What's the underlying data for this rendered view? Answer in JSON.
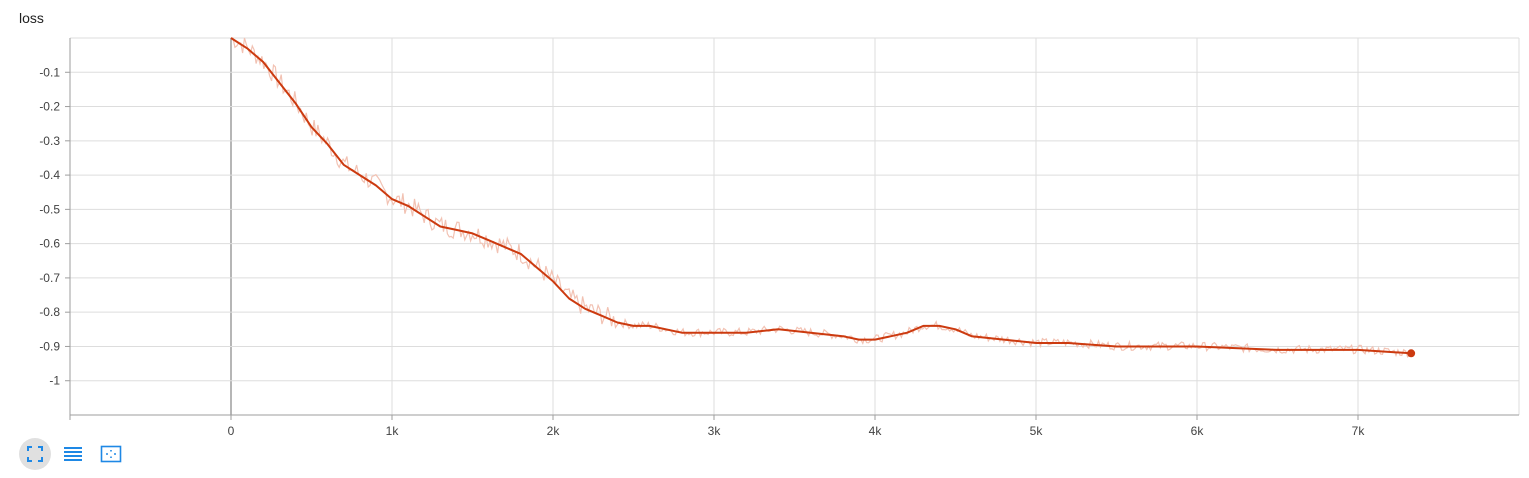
{
  "chart_data": {
    "type": "line",
    "title": "loss",
    "xlabel": "",
    "ylabel": "",
    "xlim": [
      -1000,
      8000
    ],
    "ylim": [
      -1.1,
      0
    ],
    "grid": true,
    "x_ticks": [
      0,
      1000,
      2000,
      3000,
      4000,
      5000,
      6000,
      7000
    ],
    "x_tick_labels": [
      "0",
      "1k",
      "2k",
      "3k",
      "4k",
      "5k",
      "6k",
      "7k"
    ],
    "y_ticks": [
      -0.1,
      -0.2,
      -0.3,
      -0.4,
      -0.5,
      -0.6,
      -0.7,
      -0.8,
      -0.9,
      -1
    ],
    "y_tick_labels": [
      "-0.1",
      "-0.2",
      "-0.3",
      "-0.4",
      "-0.5",
      "-0.6",
      "-0.7",
      "-0.8",
      "-0.9",
      "-1"
    ],
    "colors": {
      "smoothed": "#cc3a0f",
      "raw": "#f2c2b3",
      "grid": "#dddddd",
      "axis": "#9e9e9e"
    },
    "series": [
      {
        "smoothed": true,
        "x": [
          0,
          100,
          200,
          300,
          400,
          500,
          600,
          700,
          800,
          900,
          1000,
          1100,
          1200,
          1300,
          1400,
          1500,
          1600,
          1700,
          1800,
          1900,
          2000,
          2100,
          2200,
          2300,
          2400,
          2500,
          2600,
          2800,
          3000,
          3200,
          3400,
          3600,
          3800,
          3900,
          4000,
          4100,
          4200,
          4300,
          4400,
          4500,
          4600,
          4800,
          5000,
          5200,
          5500,
          6000,
          6500,
          7000,
          7330
        ],
        "y": [
          0,
          -0.03,
          -0.07,
          -0.13,
          -0.19,
          -0.26,
          -0.31,
          -0.37,
          -0.4,
          -0.43,
          -0.47,
          -0.49,
          -0.52,
          -0.55,
          -0.56,
          -0.57,
          -0.59,
          -0.61,
          -0.63,
          -0.67,
          -0.71,
          -0.76,
          -0.79,
          -0.81,
          -0.83,
          -0.84,
          -0.84,
          -0.86,
          -0.86,
          -0.86,
          -0.85,
          -0.86,
          -0.87,
          -0.88,
          -0.88,
          -0.87,
          -0.86,
          -0.84,
          -0.84,
          -0.85,
          -0.87,
          -0.88,
          -0.89,
          -0.89,
          -0.9,
          -0.9,
          -0.91,
          -0.91,
          -0.92
        ]
      }
    ]
  },
  "toolbar": {
    "icons": [
      "fullscreen-icon",
      "list-icon",
      "fit-domain-icon"
    ]
  }
}
